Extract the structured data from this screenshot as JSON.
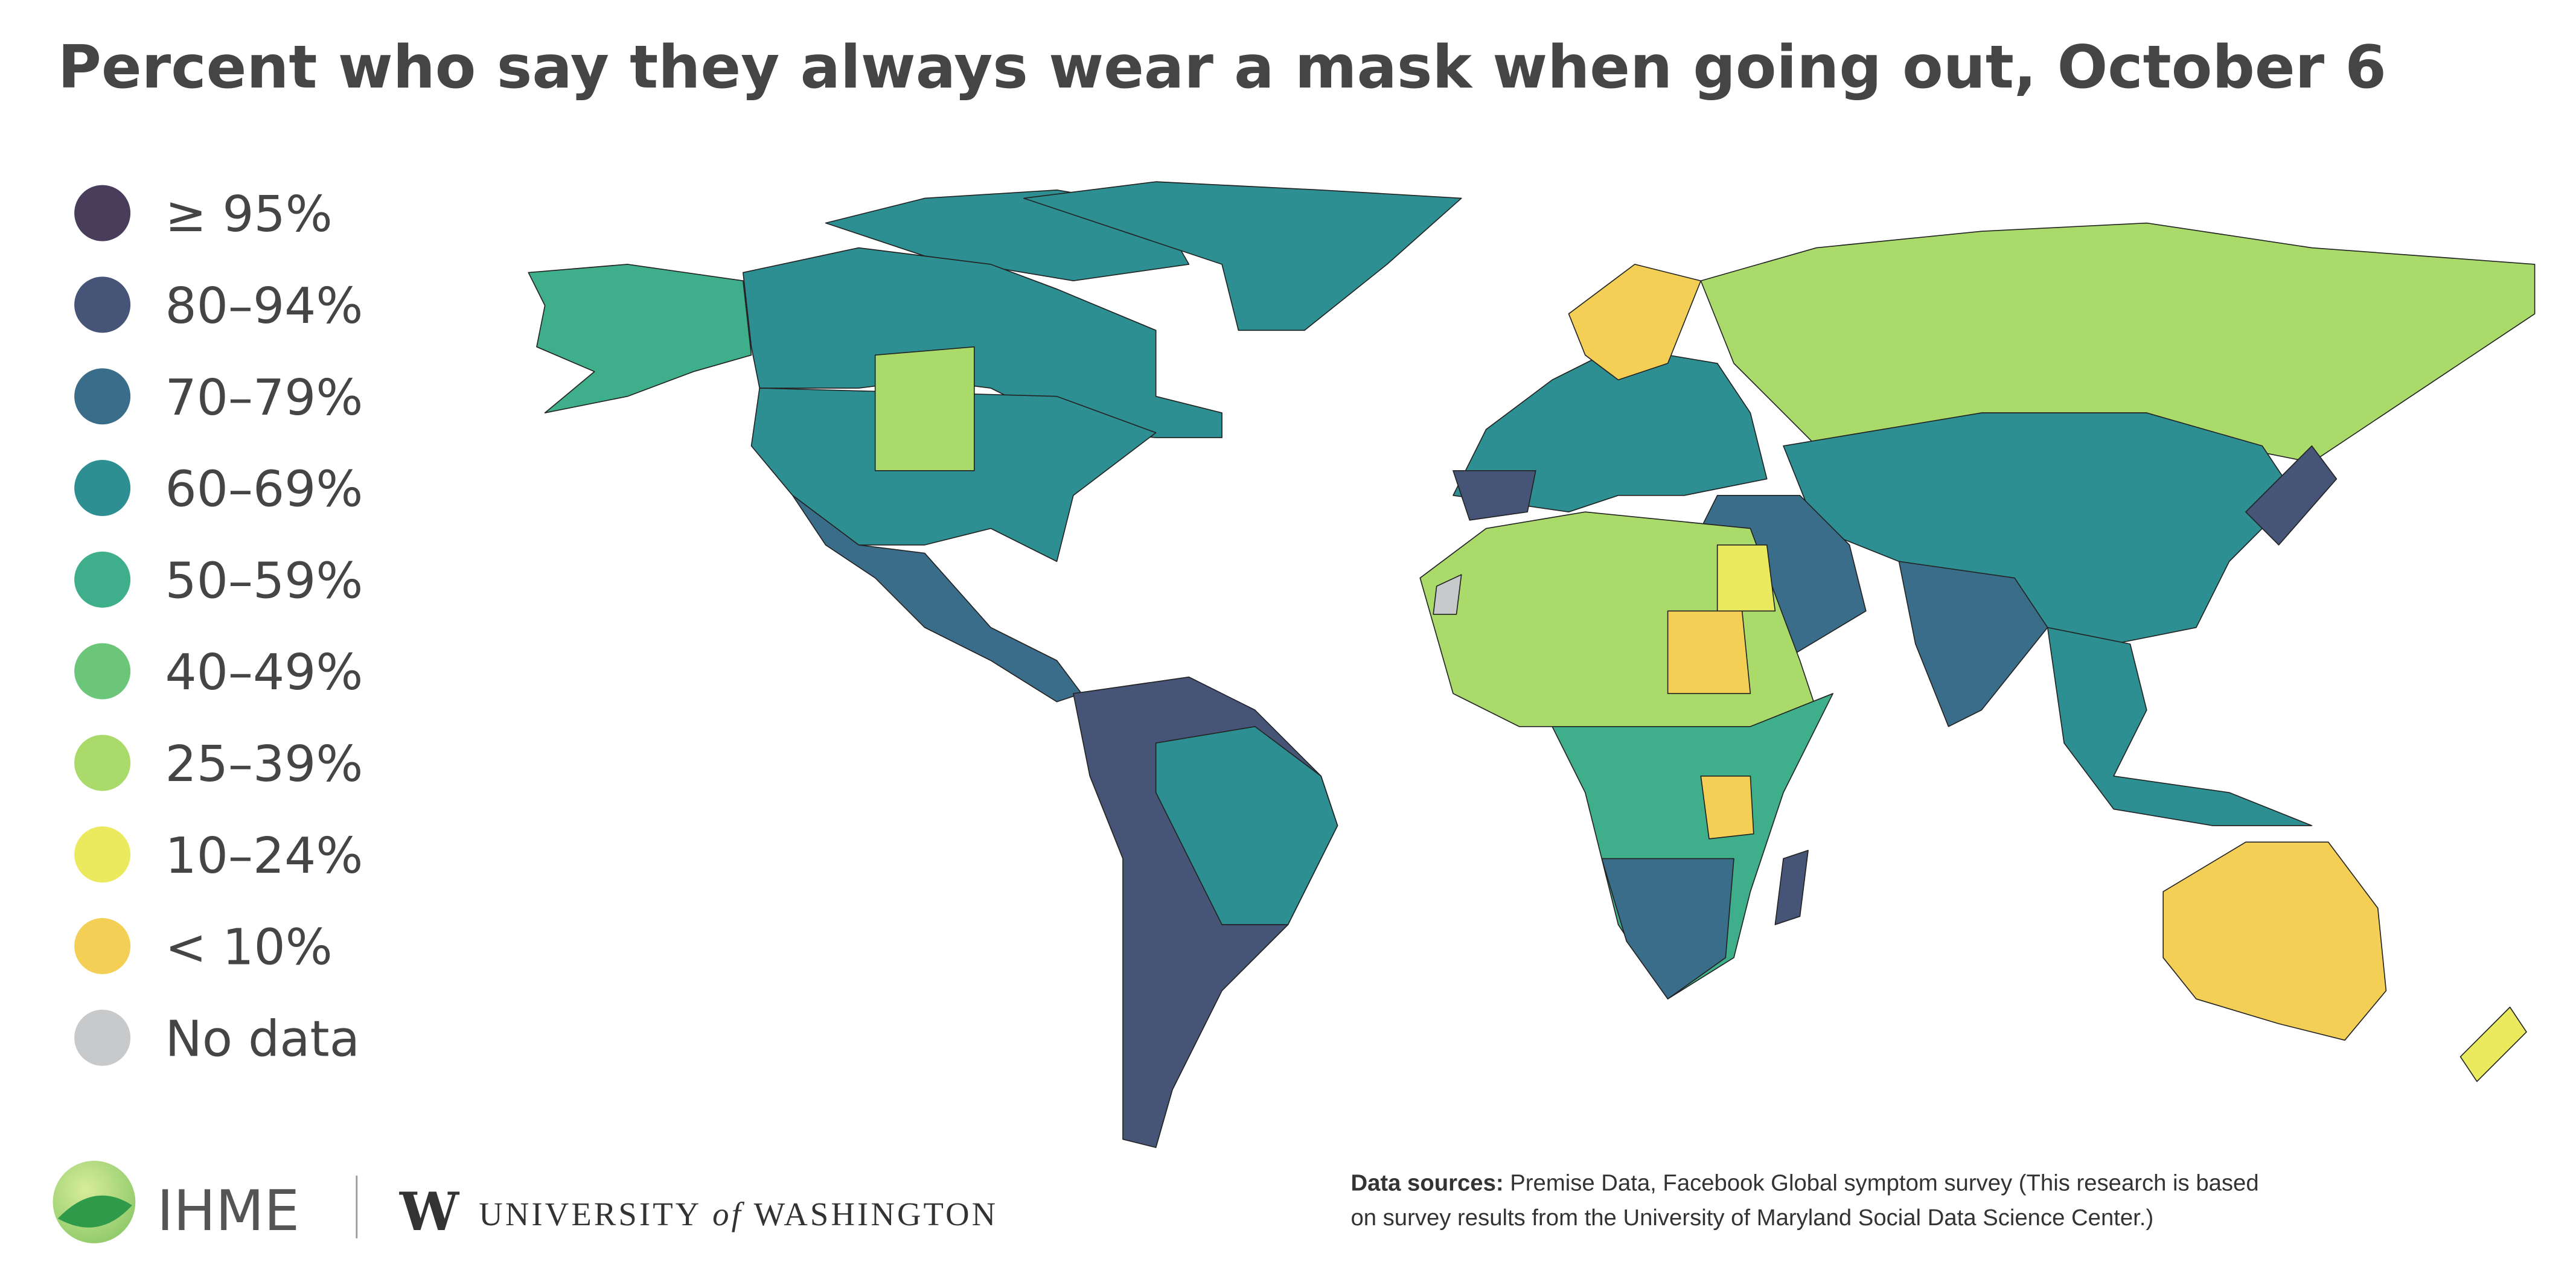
{
  "title": "Percent who say they always wear a mask when going out, October 6",
  "legend": {
    "items": [
      {
        "label": "≥ 95%",
        "color": "#483d5b"
      },
      {
        "label": "80–94%",
        "color": "#465477"
      },
      {
        "label": "70–79%",
        "color": "#3a6d8a"
      },
      {
        "label": "60–69%",
        "color": "#2d8f92"
      },
      {
        "label": "50–59%",
        "color": "#3fae8b"
      },
      {
        "label": "40–49%",
        "color": "#6cc67a"
      },
      {
        "label": "25–39%",
        "color": "#a9da6a"
      },
      {
        "label": "10–24%",
        "color": "#ebea5e"
      },
      {
        "label": "< 10%",
        "color": "#f4cf55"
      },
      {
        "label": "No data",
        "color": "#c8c9cb"
      }
    ]
  },
  "footer": {
    "ihme": "IHME",
    "uw_mark": "W",
    "uw_name": [
      "UNIVERSITY",
      "of",
      "WASHINGTON"
    ],
    "sources_label": "Data sources:",
    "sources_lines": [
      "Premise Data, Facebook Global symptom survey (This research is based",
      "on survey results from the University of Maryland Social Data Science Center.)"
    ]
  }
}
